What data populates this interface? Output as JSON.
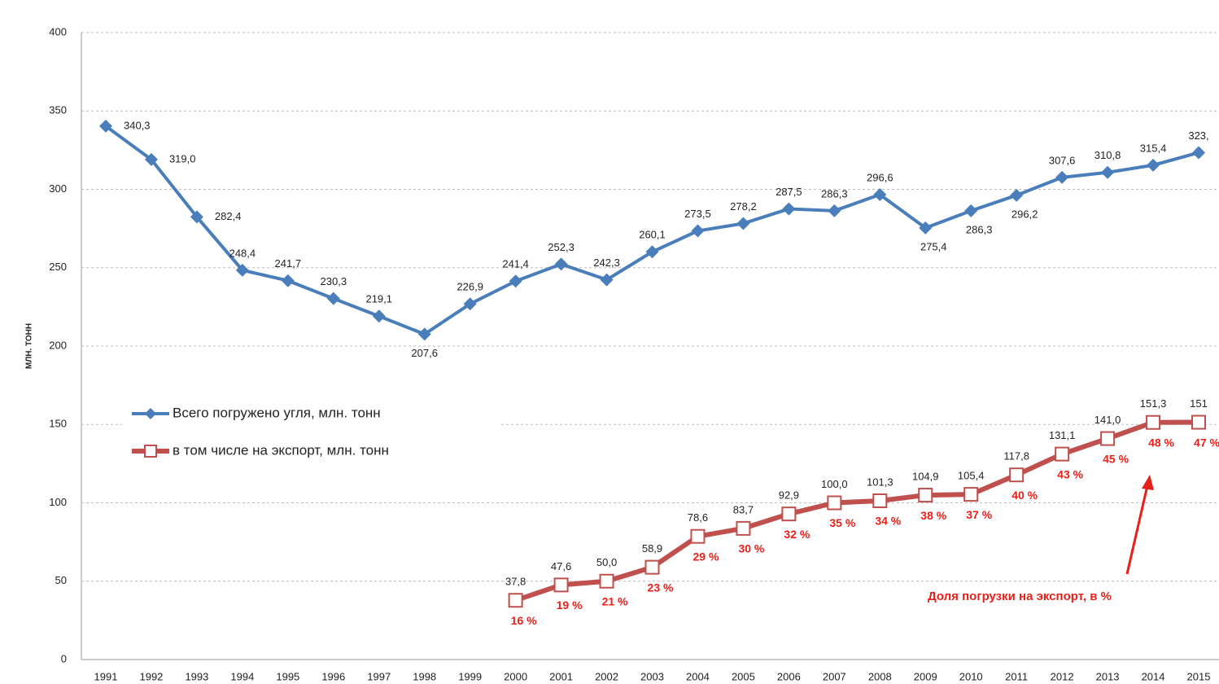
{
  "chart_data": {
    "type": "line",
    "y_label": "МЛН. ТОНН",
    "categories": [
      "1991",
      "1992",
      "1993",
      "1994",
      "1995",
      "1996",
      "1997",
      "1998",
      "1999",
      "2000",
      "2001",
      "2002",
      "2003",
      "2004",
      "2005",
      "2006",
      "2007",
      "2008",
      "2009",
      "2010",
      "2011",
      "2012",
      "2013",
      "2014",
      "2015"
    ],
    "ylim": [
      0,
      400
    ],
    "yticks": [
      0,
      50,
      100,
      150,
      200,
      250,
      300,
      350,
      400
    ],
    "grid": true,
    "legend": "left",
    "series": [
      {
        "name": "Всего погружено угля, млн. тонн",
        "color": "#4a7ebb",
        "marker": "diamond",
        "values": [
          340.3,
          319.0,
          282.4,
          248.4,
          241.7,
          230.3,
          219.1,
          207.6,
          226.9,
          241.4,
          252.3,
          242.3,
          260.1,
          273.5,
          278.2,
          287.5,
          286.3,
          296.6,
          275.4,
          286.3,
          296.2,
          307.6,
          310.8,
          315.4,
          323.4
        ],
        "value_labels": [
          "340,3",
          "319,0",
          "282,4",
          "248,4",
          "241,7",
          "230,3",
          "219,1",
          "207,6",
          "226,9",
          "241,4",
          "252,3",
          "242,3",
          "260,1",
          "273,5",
          "278,2",
          "287,5",
          "286,3",
          "296,6",
          "275,4",
          "286,3",
          "296,2",
          "307,6",
          "310,8",
          "315,4",
          "323,"
        ]
      },
      {
        "name": "в том числе на экспорт, млн. тонн",
        "color": "#c0504d",
        "marker": "square",
        "values": [
          null,
          null,
          null,
          null,
          null,
          null,
          null,
          null,
          null,
          37.8,
          47.6,
          50.0,
          58.9,
          78.6,
          83.7,
          92.9,
          100.0,
          101.3,
          104.9,
          105.4,
          117.8,
          131.1,
          141.0,
          151.3,
          151.4
        ],
        "value_labels": [
          null,
          null,
          null,
          null,
          null,
          null,
          null,
          null,
          null,
          "37,8",
          "47,6",
          "50,0",
          "58,9",
          "78,6",
          "83,7",
          "92,9",
          "100,0",
          "101,3",
          "104,9",
          "105,4",
          "117,8",
          "131,1",
          "141,0",
          "151,3",
          "151"
        ],
        "share_labels": [
          null,
          null,
          null,
          null,
          null,
          null,
          null,
          null,
          null,
          "16 %",
          "19 %",
          "21 %",
          "23 %",
          "29 %",
          "30 %",
          "32 %",
          "35 %",
          "34 %",
          "38 %",
          "37 %",
          "40 %",
          "43 %",
          "45 %",
          "48 %",
          "47 %"
        ]
      }
    ],
    "annotation": "Доля погрузки на экспорт, в %"
  }
}
